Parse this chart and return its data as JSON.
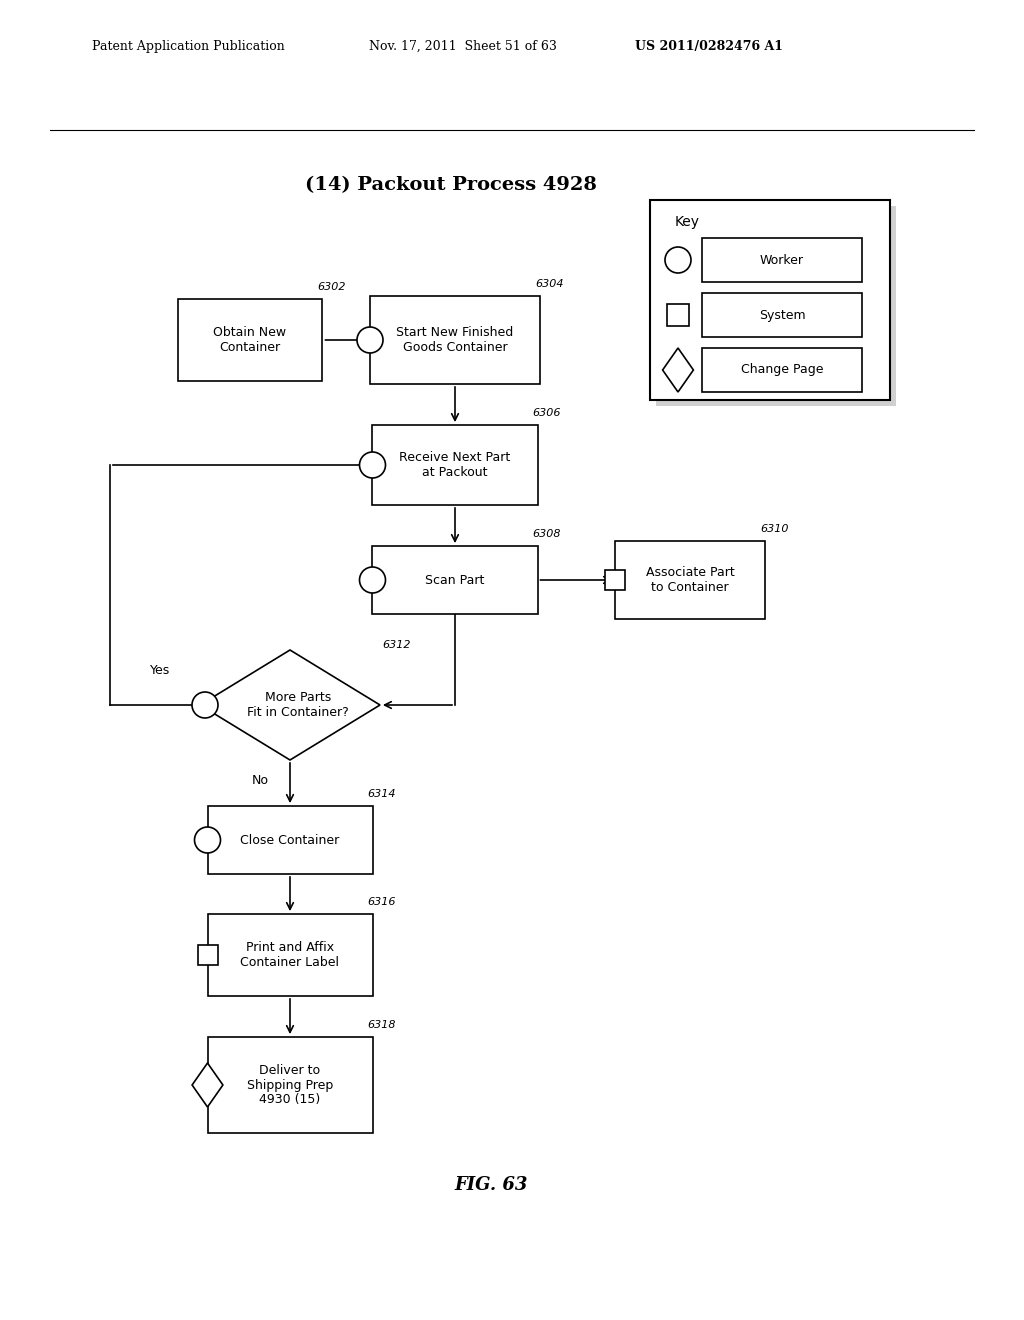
{
  "title": "(14) Packout Process 4928",
  "fig_label": "FIG. 63",
  "header_left": "Patent Application Publication",
  "header_mid": "Nov. 17, 2011  Sheet 51 of 63",
  "header_right": "US 2011/0282476 A1",
  "background": "#ffffff",
  "figw": 10.24,
  "figh": 13.2,
  "dpi": 100
}
